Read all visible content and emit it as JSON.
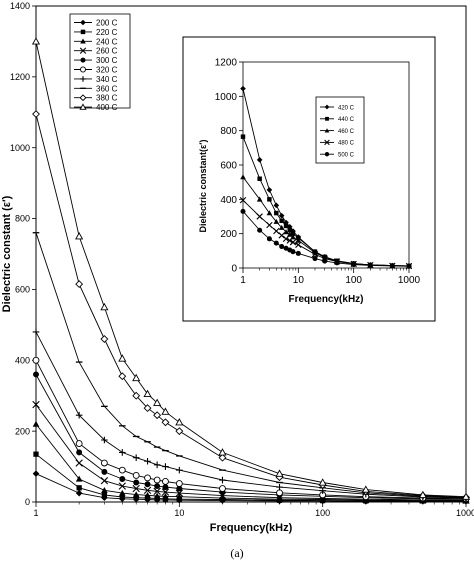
{
  "chart_data": [
    {
      "type": "line",
      "xscale": "log",
      "xlabel": "Frequency(kHz)",
      "ylabel": "Dielectric constant (ε′)",
      "xlim": [
        1,
        1000
      ],
      "ylim": [
        0,
        1400
      ],
      "x_ticks": [
        "1",
        "10",
        "100",
        "1000"
      ],
      "y_ticks": [
        "0",
        "200",
        "400",
        "600",
        "800",
        "1000",
        "1200",
        "1400"
      ],
      "grid": false,
      "legend_position": "top-left",
      "series": [
        {
          "name": "200 C",
          "marker": "diamond",
          "x": [
            1,
            2,
            3,
            4,
            5,
            6,
            7,
            8,
            10,
            20,
            50,
            100,
            200,
            500,
            1000
          ],
          "y": [
            80,
            25,
            12,
            9,
            8,
            7,
            6,
            6,
            5,
            4,
            3,
            3,
            2,
            2,
            2
          ]
        },
        {
          "name": "220 C",
          "marker": "square",
          "x": [
            1,
            2,
            3,
            4,
            5,
            6,
            7,
            8,
            10,
            20,
            50,
            100,
            200,
            500,
            1000
          ],
          "y": [
            135,
            40,
            20,
            14,
            12,
            11,
            10,
            9,
            8,
            7,
            5,
            4,
            3,
            3,
            3
          ]
        },
        {
          "name": "240 C",
          "marker": "triangle",
          "x": [
            1,
            2,
            3,
            4,
            5,
            6,
            7,
            8,
            10,
            20,
            50,
            100,
            200,
            500,
            1000
          ],
          "y": [
            220,
            65,
            33,
            25,
            21,
            19,
            17,
            16,
            15,
            11,
            8,
            7,
            5,
            4,
            4
          ]
        },
        {
          "name": "260 C",
          "marker": "x",
          "x": [
            1,
            2,
            3,
            4,
            5,
            6,
            7,
            8,
            10,
            20,
            50,
            100,
            200,
            500,
            1000
          ],
          "y": [
            275,
            110,
            60,
            45,
            38,
            33,
            30,
            28,
            25,
            18,
            12,
            10,
            8,
            6,
            5
          ]
        },
        {
          "name": "300 C",
          "marker": "circle",
          "x": [
            1,
            2,
            3,
            4,
            5,
            6,
            7,
            8,
            10,
            20,
            50,
            100,
            200,
            500,
            1000
          ],
          "y": [
            360,
            140,
            85,
            65,
            55,
            50,
            45,
            42,
            38,
            28,
            20,
            16,
            12,
            9,
            8
          ]
        },
        {
          "name": "320 C",
          "marker": "circle-open",
          "x": [
            1,
            2,
            3,
            4,
            5,
            6,
            7,
            8,
            10,
            20,
            50,
            100,
            200,
            500,
            1000
          ],
          "y": [
            400,
            165,
            110,
            90,
            75,
            68,
            62,
            58,
            52,
            38,
            26,
            20,
            15,
            11,
            9
          ]
        },
        {
          "name": "340 C",
          "marker": "plus",
          "x": [
            1,
            2,
            3,
            4,
            5,
            6,
            7,
            8,
            10,
            20,
            50,
            100,
            200,
            500,
            1000
          ],
          "y": [
            480,
            245,
            175,
            140,
            125,
            115,
            105,
            100,
            90,
            62,
            42,
            32,
            22,
            14,
            11
          ]
        },
        {
          "name": "360 C",
          "marker": "dash",
          "x": [
            1,
            2,
            3,
            4,
            5,
            6,
            7,
            8,
            10,
            20,
            50,
            100,
            200,
            500,
            1000
          ],
          "y": [
            760,
            395,
            270,
            215,
            185,
            170,
            155,
            145,
            130,
            90,
            55,
            40,
            26,
            16,
            12
          ]
        },
        {
          "name": "380 C",
          "marker": "diamond-open",
          "x": [
            1,
            2,
            3,
            4,
            5,
            6,
            7,
            8,
            10,
            20,
            50,
            100,
            200,
            500,
            1000
          ],
          "y": [
            1095,
            615,
            460,
            355,
            300,
            265,
            245,
            225,
            200,
            125,
            70,
            48,
            30,
            18,
            13
          ]
        },
        {
          "name": "400 C",
          "marker": "triangle-open",
          "x": [
            1,
            2,
            3,
            4,
            5,
            6,
            7,
            8,
            10,
            20,
            50,
            100,
            200,
            500,
            1000
          ],
          "y": [
            1300,
            750,
            550,
            405,
            350,
            305,
            280,
            255,
            225,
            140,
            80,
            55,
            35,
            20,
            15
          ]
        }
      ]
    },
    {
      "type": "line",
      "xscale": "log",
      "xlabel": "Frequency(kHz)",
      "ylabel": "Dielectric constant(ε′)",
      "xlim": [
        1,
        1000
      ],
      "ylim": [
        0,
        1200
      ],
      "x_ticks": [
        "1",
        "10",
        "100",
        "1000"
      ],
      "y_ticks": [
        "0",
        "200",
        "400",
        "600",
        "800",
        "1000",
        "1200"
      ],
      "grid": false,
      "legend_position": "top-right",
      "series": [
        {
          "name": "420 C",
          "marker": "diamond",
          "x": [
            1,
            2,
            3,
            4,
            5,
            6,
            7,
            8,
            10,
            20,
            30,
            50,
            100,
            200,
            500,
            1000
          ],
          "y": [
            1045,
            630,
            455,
            365,
            305,
            265,
            240,
            215,
            180,
            95,
            65,
            40,
            25,
            18,
            14,
            12
          ]
        },
        {
          "name": "440 C",
          "marker": "square",
          "x": [
            1,
            2,
            3,
            4,
            5,
            6,
            7,
            8,
            10,
            20,
            30,
            50,
            100,
            200,
            500,
            1000
          ],
          "y": [
            765,
            520,
            400,
            320,
            275,
            245,
            220,
            200,
            175,
            95,
            65,
            42,
            26,
            18,
            14,
            12
          ]
        },
        {
          "name": "460 C",
          "marker": "triangle",
          "x": [
            1,
            2,
            3,
            4,
            5,
            6,
            7,
            8,
            10,
            20,
            30,
            50,
            100,
            200,
            500,
            1000
          ],
          "y": [
            530,
            400,
            320,
            270,
            235,
            210,
            195,
            180,
            160,
            90,
            62,
            40,
            25,
            18,
            14,
            12
          ]
        },
        {
          "name": "480 C",
          "marker": "x",
          "x": [
            1,
            2,
            3,
            4,
            5,
            6,
            7,
            8,
            10,
            20,
            30,
            50,
            100,
            200,
            500,
            1000
          ],
          "y": [
            395,
            300,
            250,
            215,
            190,
            170,
            160,
            150,
            135,
            80,
            55,
            38,
            24,
            17,
            13,
            11
          ]
        },
        {
          "name": "500 C",
          "marker": "circle",
          "x": [
            1,
            2,
            3,
            4,
            5,
            6,
            7,
            8,
            10,
            20,
            30,
            50,
            100,
            200,
            500,
            1000
          ],
          "y": [
            330,
            220,
            170,
            145,
            125,
            115,
            105,
            95,
            85,
            55,
            40,
            30,
            20,
            15,
            12,
            10
          ]
        }
      ]
    }
  ],
  "caption": "(a)"
}
